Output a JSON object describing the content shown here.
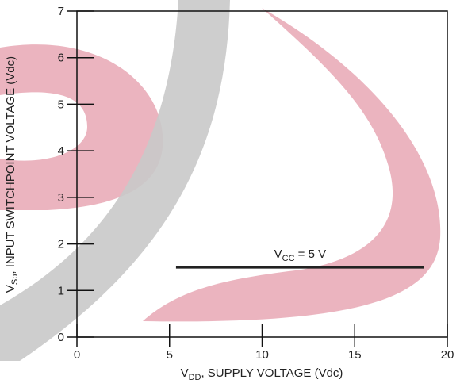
{
  "chart_data": {
    "type": "line",
    "x_label": {
      "main": "V",
      "sub": "DD",
      "rest": ", SUPPLY VOLTAGE (Vdc)"
    },
    "y_label": {
      "main": "V",
      "sub": "Sp",
      "rest": ", INPUT SWITCHPOINT VOLTAGE (Vdc)"
    },
    "annotation": {
      "main": "V",
      "sub": "CC",
      "rest": " = 5 V"
    },
    "x": [
      5.35,
      18.75
    ],
    "series": [
      {
        "color": "#222222",
        "values": [
          1.5,
          1.5
        ]
      }
    ],
    "xlim": [
      0,
      20
    ],
    "xticks": [
      0,
      5,
      10,
      15,
      20
    ],
    "ylim": [
      0,
      7
    ],
    "yticks": [
      0,
      1,
      2,
      3,
      4,
      5,
      6,
      7
    ]
  }
}
